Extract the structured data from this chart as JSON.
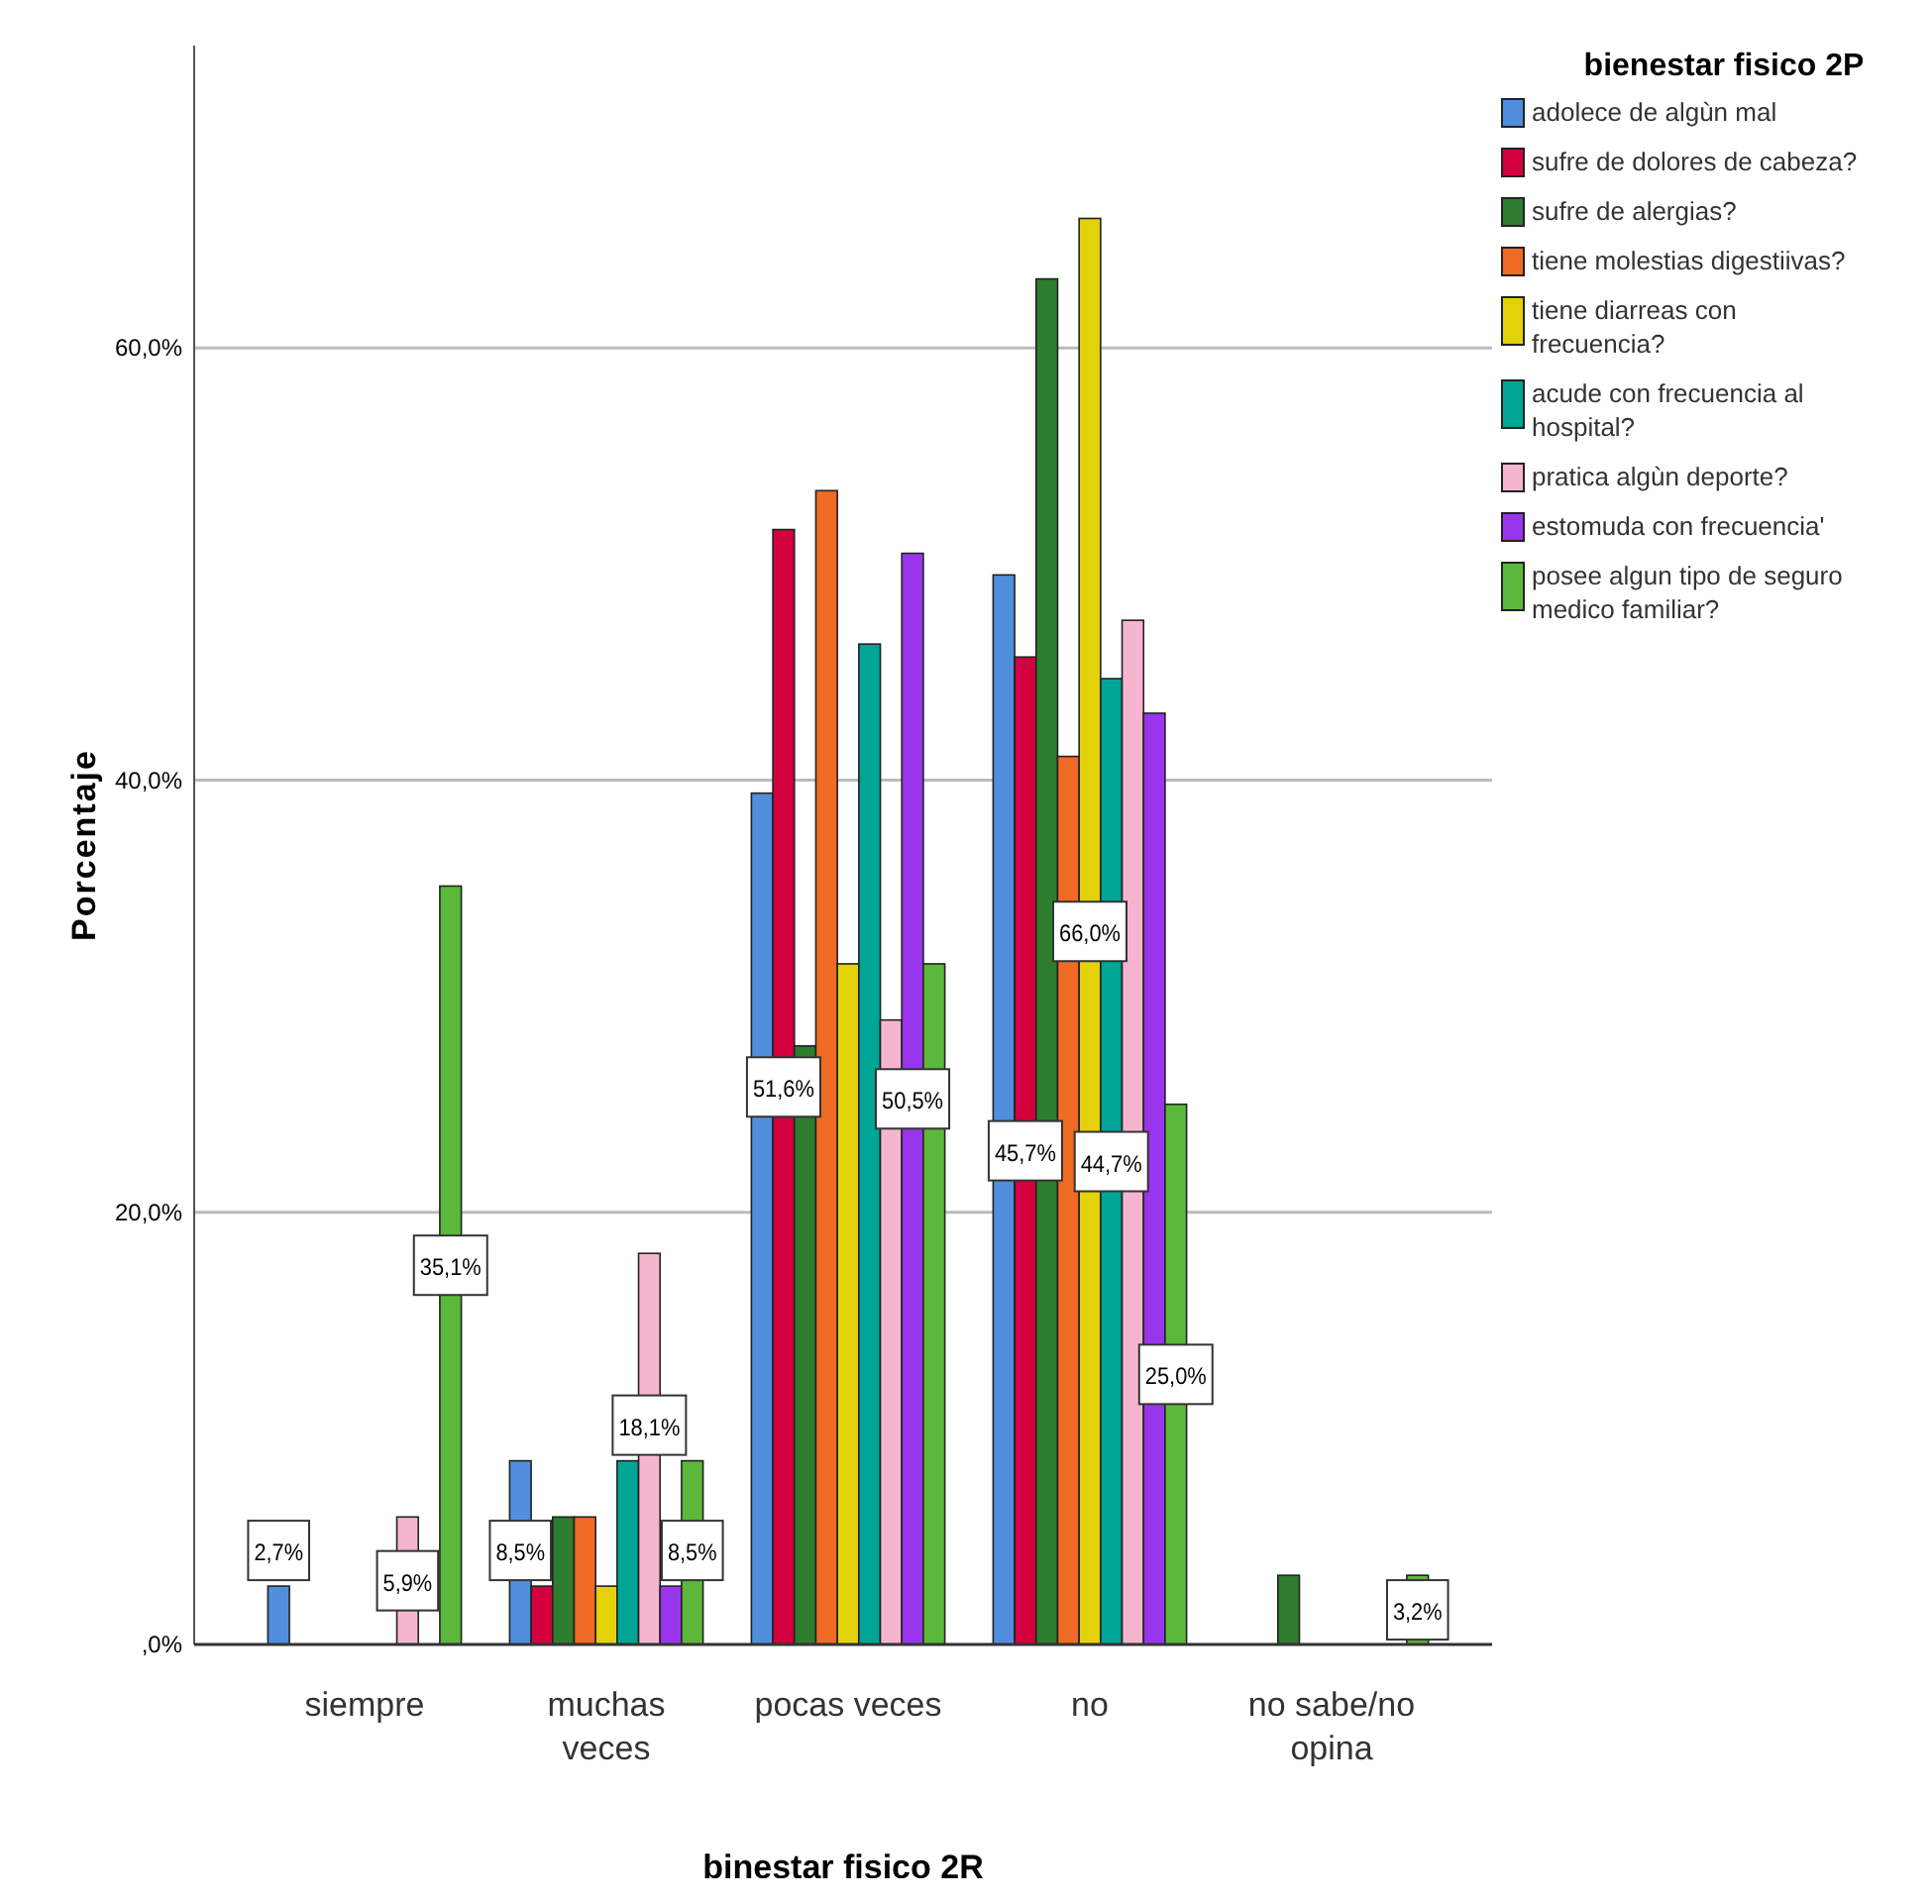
{
  "chart_data": {
    "type": "bar",
    "xlabel": "binestar fisico 2R",
    "ylabel": "Porcentaje",
    "legend_title": "bienestar fisico 2P",
    "categories": [
      "siempre",
      "muchas veces",
      "pocas veces",
      "no",
      "no sabe/no opina"
    ],
    "ylim": [
      0,
      74
    ],
    "yticks": [
      {
        "value": 0,
        "label": ",0%"
      },
      {
        "value": 20,
        "label": "20,0%"
      },
      {
        "value": 40,
        "label": "40,0%"
      },
      {
        "value": 60,
        "label": "60,0%"
      }
    ],
    "grid": "y",
    "legend": "top right",
    "series": [
      {
        "name": "adolece de algùn mal",
        "color": "#4f8fdc",
        "values": [
          2.7,
          8.5,
          39.4,
          49.5,
          null
        ],
        "value_labels": [
          "2,7%",
          "8,5%",
          null,
          null,
          null
        ]
      },
      {
        "name": "sufre de dolores de cabeza?",
        "color": "#d2003c",
        "values": [
          null,
          2.7,
          51.6,
          45.7,
          null
        ],
        "value_labels": [
          null,
          null,
          "51,6%",
          "45,7%",
          null
        ]
      },
      {
        "name": "sufre de alergias?",
        "color": "#2e7d2e",
        "values": [
          null,
          5.9,
          27.7,
          63.2,
          3.2
        ],
        "value_labels": [
          null,
          null,
          null,
          null,
          null
        ]
      },
      {
        "name": "tiene molestias digestiivas?",
        "color": "#ef6a22",
        "values": [
          null,
          5.9,
          53.4,
          41.1,
          null
        ],
        "value_labels": [
          null,
          null,
          null,
          null,
          null
        ]
      },
      {
        "name": "tiene diarreas con frecuencia?",
        "color": "#e3d10a",
        "values": [
          null,
          2.7,
          31.5,
          66.0,
          null
        ],
        "value_labels": [
          null,
          null,
          null,
          "66,0%",
          null
        ]
      },
      {
        "name": "acude con frecuencia al hospital?",
        "color": "#00a596",
        "values": [
          null,
          8.5,
          46.3,
          44.7,
          null
        ],
        "value_labels": [
          null,
          null,
          null,
          "44,7%",
          null
        ]
      },
      {
        "name": "pratica algùn deporte?",
        "color": "#f6b5cf",
        "values": [
          5.9,
          18.1,
          28.9,
          47.4,
          null
        ],
        "value_labels": [
          "5,9%",
          "18,1%",
          null,
          null,
          null
        ]
      },
      {
        "name": "estomuda con frecuencia'",
        "color": "#9a35ee",
        "values": [
          null,
          2.7,
          50.5,
          43.1,
          null
        ],
        "value_labels": [
          null,
          null,
          "50,5%",
          null,
          null
        ]
      },
      {
        "name": "posee algun tipo de seguro medico familiar?",
        "color": "#5cb83a",
        "values": [
          35.1,
          8.5,
          31.5,
          25.0,
          3.2
        ],
        "value_labels": [
          "35,1%",
          "8,5%",
          null,
          "25,0%",
          "3,2%"
        ]
      }
    ]
  }
}
